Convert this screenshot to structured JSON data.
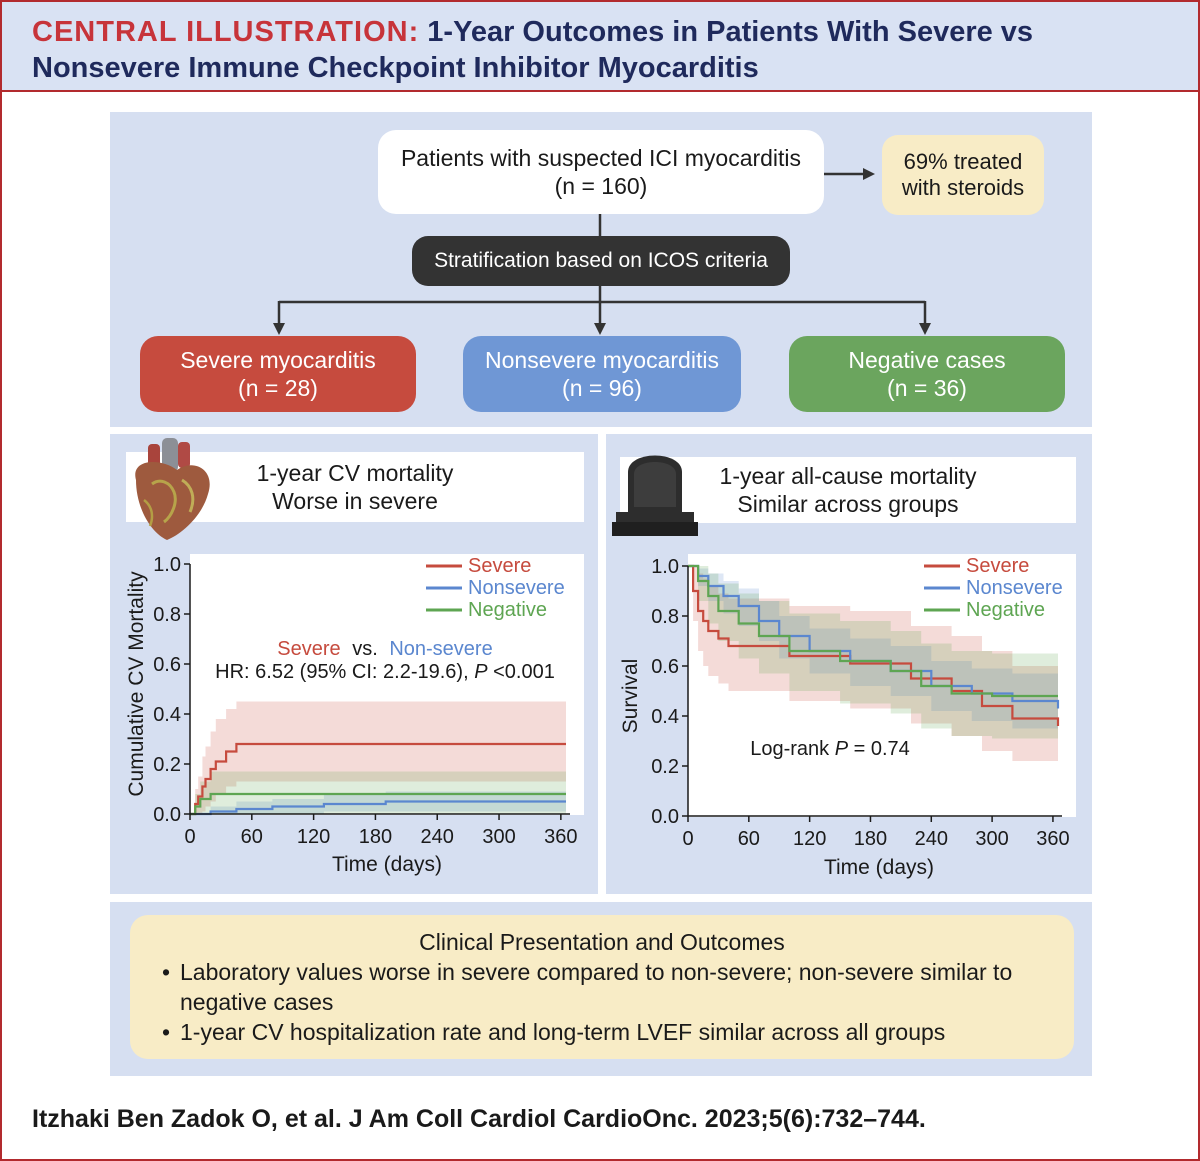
{
  "header": {
    "label": "CENTRAL ILLUSTRATION:",
    "title": "1-Year Outcomes in Patients With Severe vs Nonsevere Immune Checkpoint Inhibitor Myocarditis"
  },
  "flow": {
    "patients_line1": "Patients with suspected ICI myocarditis",
    "patients_line2": "(n = 160)",
    "steroids_line1": "69% treated",
    "steroids_line2": "with steroids",
    "stratification": "Stratification based on ICOS criteria",
    "severe_line1": "Severe myocarditis",
    "severe_line2": "(n = 28)",
    "nonsevere_line1": "Nonsevere myocarditis",
    "nonsevere_line2": "(n = 96)",
    "negative_line1": "Negative cases",
    "negative_line2": "(n = 36)"
  },
  "left_panel": {
    "title_line1": "1-year CV mortality",
    "title_line2": "Worse in severe",
    "icon": "heart-icon",
    "hr_severe": "Severe",
    "hr_vs": "vs.",
    "hr_nonsevere": "Non-severe",
    "hr_prefix": "HR: 6.52 (95% CI: 2.2-19.6), ",
    "hr_p": "P",
    "hr_suffix": " <0.001"
  },
  "right_panel": {
    "title_line1": "1-year all-cause mortality",
    "title_line2": "Similar across groups",
    "icon": "tombstone-icon",
    "logrank_prefix": "Log-rank ",
    "logrank_p": "P",
    "logrank_suffix": " = 0.74"
  },
  "summary": {
    "title": "Clinical Presentation and Outcomes",
    "bullet1_line1": "Laboratory values worse in severe compared to non-severe; non-severe similar to",
    "bullet1_line2": "negative cases",
    "bullet2": "1-year CV hospitalization rate and long-term LVEF similar across all groups"
  },
  "citation": "Itzhaki Ben Zadok O, et al. J Am Coll Cardiol CardioOnc. 2023;5(6):732–744.",
  "colors": {
    "severe": "#c64b3e",
    "nonsevere": "#5b87cf",
    "negative": "#5ea552"
  },
  "chart_data": [
    {
      "type": "line",
      "title": "1-year CV mortality",
      "xlabel": "Time (days)",
      "ylabel": "Cumulative CV Mortality",
      "xlim": [
        0,
        365
      ],
      "ylim": [
        0,
        1.0
      ],
      "xticks": [
        "0",
        "60",
        "120",
        "180",
        "240",
        "300",
        "360"
      ],
      "yticks": [
        "0.0",
        "0.2",
        "0.4",
        "0.6",
        "0.8",
        "1.0"
      ],
      "legend_position": "top-right",
      "series": [
        {
          "name": "Severe",
          "x": [
            0,
            5,
            8,
            12,
            15,
            20,
            25,
            35,
            45,
            365
          ],
          "y": [
            0,
            0.04,
            0.07,
            0.11,
            0.14,
            0.18,
            0.21,
            0.25,
            0.28,
            0.28
          ],
          "ci_low": [
            0,
            0,
            0,
            0.01,
            0.03,
            0.05,
            0.08,
            0.11,
            0.13,
            0.17
          ],
          "ci_high": [
            0,
            0.1,
            0.15,
            0.23,
            0.27,
            0.33,
            0.38,
            0.42,
            0.45,
            0.45
          ]
        },
        {
          "name": "Nonsevere",
          "x": [
            0,
            20,
            45,
            80,
            130,
            190,
            365
          ],
          "y": [
            0,
            0.01,
            0.02,
            0.03,
            0.04,
            0.05,
            0.05
          ],
          "ci_low": [
            0,
            0,
            0,
            0,
            0.01,
            0.01,
            0.01
          ],
          "ci_high": [
            0,
            0.03,
            0.05,
            0.06,
            0.08,
            0.09,
            0.09
          ]
        },
        {
          "name": "Negative",
          "x": [
            0,
            5,
            10,
            20,
            190,
            365
          ],
          "y": [
            0,
            0.03,
            0.06,
            0.08,
            0.08,
            0.08
          ],
          "ci_low": [
            0,
            0,
            0,
            0,
            0,
            0
          ],
          "ci_high": [
            0,
            0.08,
            0.13,
            0.17,
            0.17,
            0.17
          ]
        }
      ]
    },
    {
      "type": "line",
      "title": "1-year all-cause mortality",
      "xlabel": "Time (days)",
      "ylabel": "Survival",
      "xlim": [
        0,
        365
      ],
      "ylim": [
        0,
        1.0
      ],
      "xticks": [
        "0",
        "60",
        "120",
        "180",
        "240",
        "300",
        "360"
      ],
      "yticks": [
        "0.0",
        "0.2",
        "0.4",
        "0.6",
        "0.8",
        "1.0"
      ],
      "legend_position": "top-right",
      "series": [
        {
          "name": "Severe",
          "x": [
            0,
            5,
            10,
            15,
            20,
            30,
            40,
            100,
            160,
            220,
            260,
            290,
            320,
            365
          ],
          "y": [
            1.0,
            0.9,
            0.82,
            0.78,
            0.74,
            0.71,
            0.68,
            0.64,
            0.61,
            0.55,
            0.5,
            0.44,
            0.39,
            0.36
          ],
          "ci_low": [
            1.0,
            0.78,
            0.66,
            0.6,
            0.56,
            0.53,
            0.5,
            0.46,
            0.43,
            0.37,
            0.32,
            0.26,
            0.22,
            0.19
          ],
          "ci_high": [
            1.0,
            1.0,
            0.97,
            0.95,
            0.92,
            0.89,
            0.87,
            0.84,
            0.82,
            0.76,
            0.72,
            0.66,
            0.6,
            0.55
          ]
        },
        {
          "name": "Nonsevere",
          "x": [
            0,
            10,
            20,
            35,
            50,
            70,
            90,
            120,
            160,
            200,
            240,
            280,
            320,
            365
          ],
          "y": [
            1.0,
            0.96,
            0.92,
            0.88,
            0.84,
            0.78,
            0.72,
            0.66,
            0.62,
            0.58,
            0.52,
            0.49,
            0.46,
            0.43
          ],
          "ci_low": [
            1.0,
            0.92,
            0.86,
            0.81,
            0.76,
            0.7,
            0.63,
            0.57,
            0.52,
            0.48,
            0.42,
            0.38,
            0.35,
            0.32
          ],
          "ci_high": [
            1.0,
            0.99,
            0.97,
            0.94,
            0.91,
            0.86,
            0.8,
            0.75,
            0.71,
            0.68,
            0.62,
            0.59,
            0.57,
            0.54
          ]
        },
        {
          "name": "Negative",
          "x": [
            0,
            10,
            20,
            30,
            50,
            70,
            100,
            150,
            200,
            230,
            260,
            300,
            365
          ],
          "y": [
            1.0,
            0.94,
            0.88,
            0.82,
            0.77,
            0.72,
            0.66,
            0.62,
            0.58,
            0.52,
            0.49,
            0.48,
            0.48
          ],
          "ci_low": [
            1.0,
            0.86,
            0.77,
            0.7,
            0.63,
            0.57,
            0.5,
            0.45,
            0.41,
            0.35,
            0.32,
            0.31,
            0.31
          ],
          "ci_high": [
            1.0,
            1.0,
            0.97,
            0.93,
            0.89,
            0.86,
            0.81,
            0.78,
            0.74,
            0.69,
            0.66,
            0.65,
            0.65
          ]
        }
      ]
    }
  ]
}
